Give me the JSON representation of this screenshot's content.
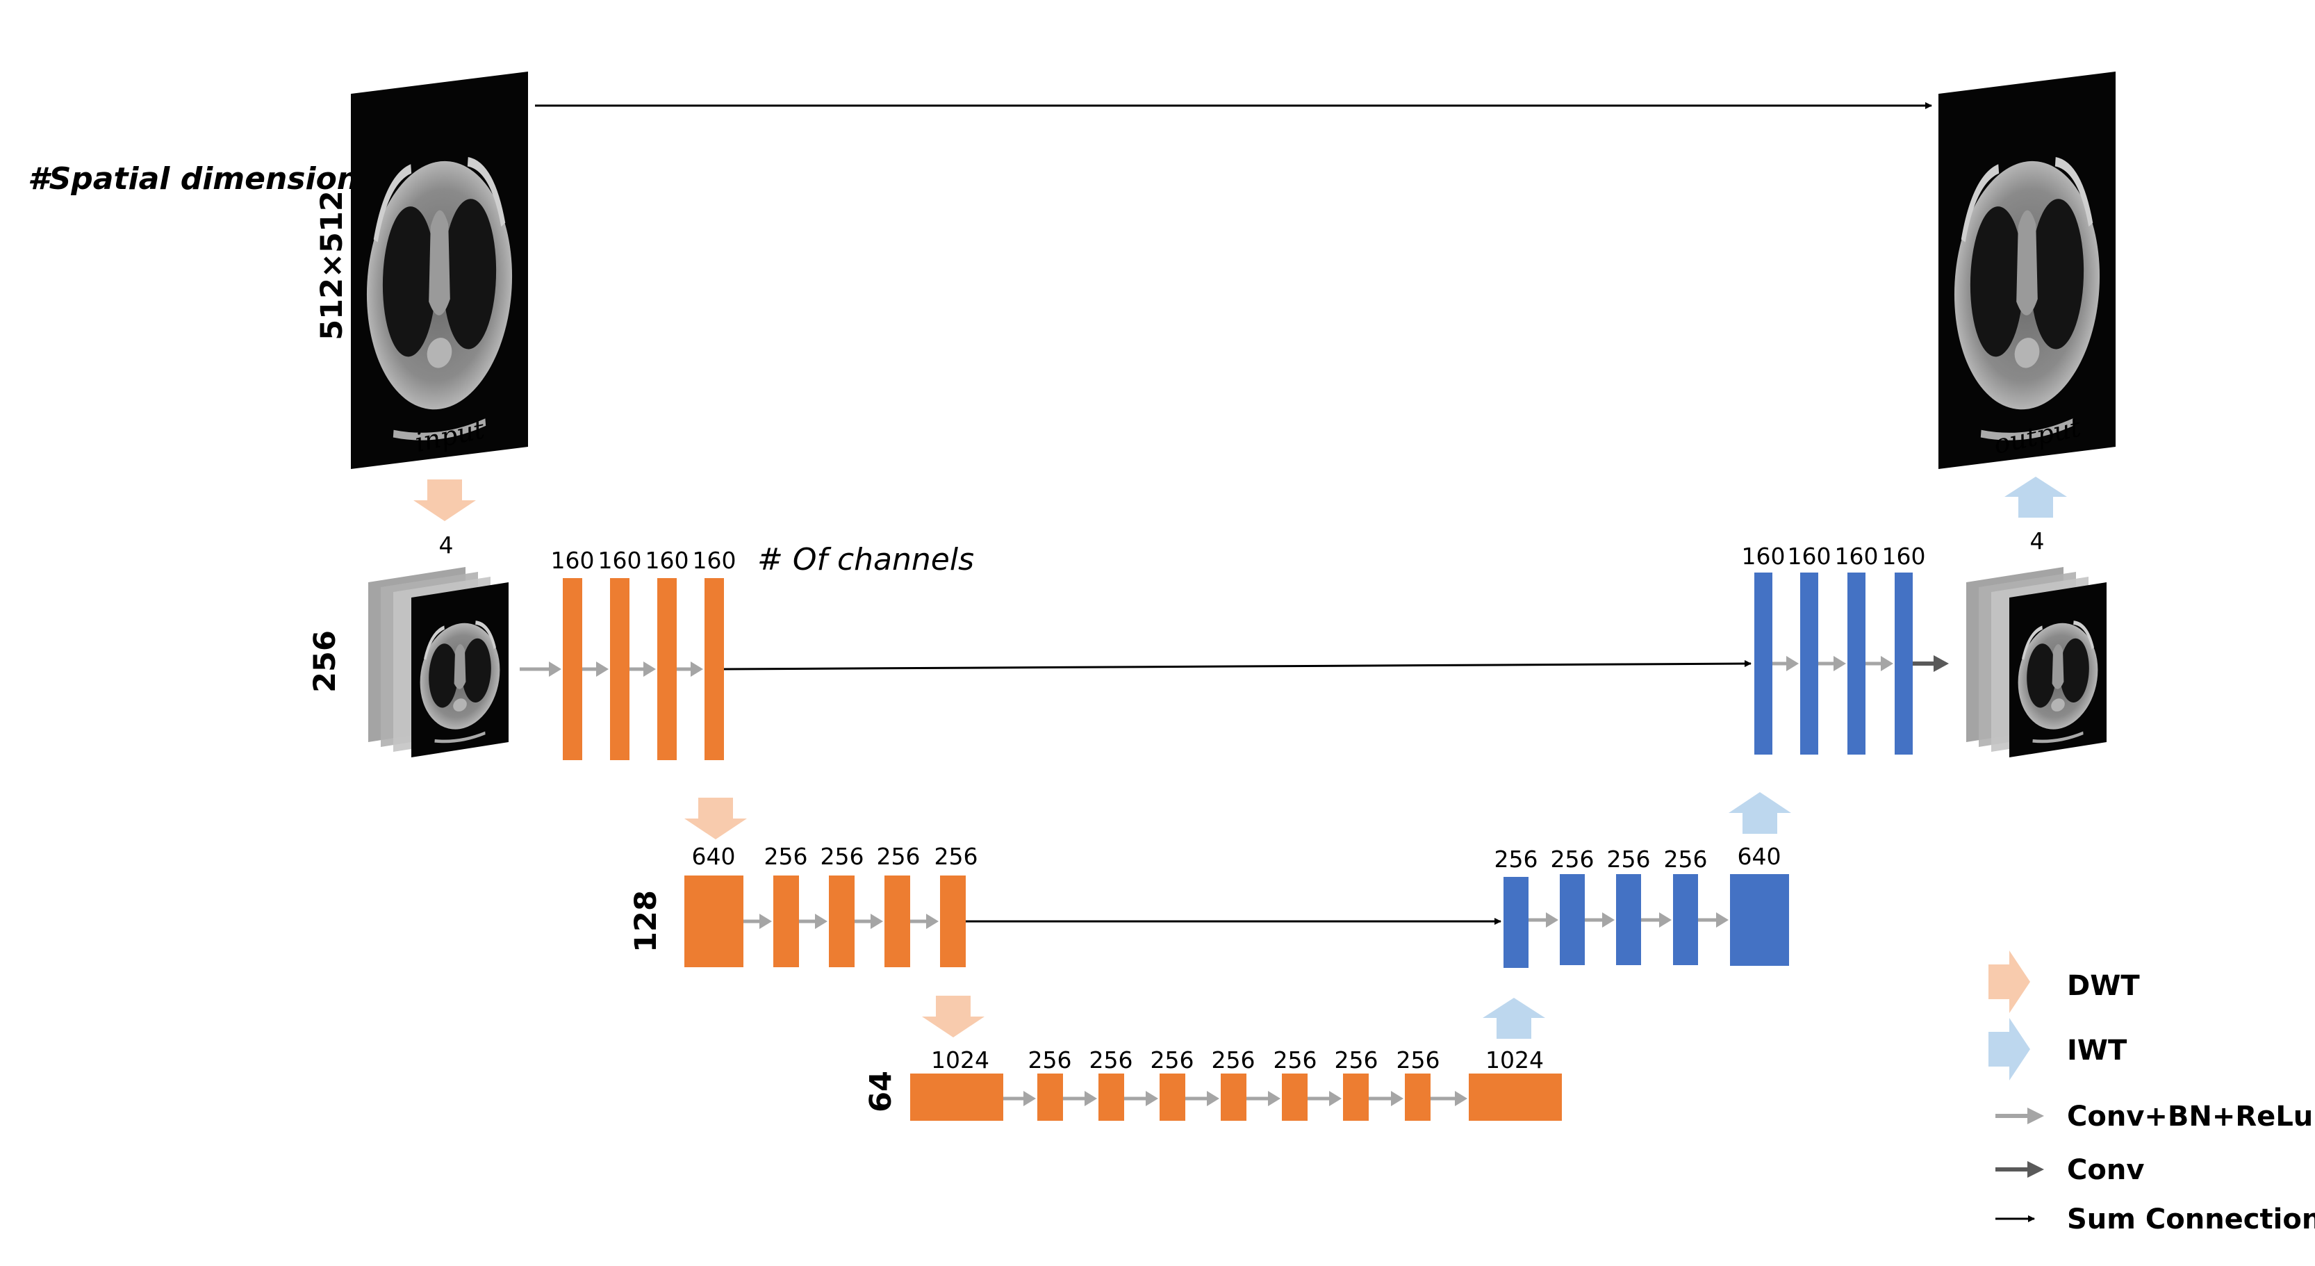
{
  "labels": {
    "spatial_title": "#Spatial dimension:",
    "channels_title": "# Of channels",
    "input": "input",
    "output": "output"
  },
  "levels": {
    "l512": "512×512",
    "l256": "256",
    "l128": "128",
    "l64": "64"
  },
  "level1": {
    "input_stack_channels": "4",
    "encoder_channels": [
      "160",
      "160",
      "160",
      "160"
    ],
    "decoder_channels": [
      "160",
      "160",
      "160",
      "160"
    ],
    "output_stack_channels": "4"
  },
  "level2": {
    "encoder_channels": [
      "640",
      "256",
      "256",
      "256",
      "256"
    ],
    "decoder_channels": [
      "256",
      "256",
      "256",
      "256",
      "640"
    ]
  },
  "level3": {
    "channels": [
      "1024",
      "256",
      "256",
      "256",
      "256",
      "256",
      "256",
      "256",
      "1024"
    ]
  },
  "legend": [
    {
      "label": "DWT",
      "icon": "dwt-arrow-icon"
    },
    {
      "label": "IWT",
      "icon": "iwt-arrow-icon"
    },
    {
      "label": "Conv+BN+ReLu",
      "icon": "conv-bn-relu-arrow-icon"
    },
    {
      "label": "Conv",
      "icon": "conv-arrow-icon"
    },
    {
      "label": "Sum Connection",
      "icon": "sum-connection-arrow-icon"
    }
  ],
  "colors": {
    "encoder": "#ED7D31",
    "decoder": "#4472C4",
    "dwt": "#F8CBAD",
    "iwt": "#BDD7EE",
    "conv_bn_relu": "#A5A5A5",
    "conv": "#595959",
    "sum": "#000000"
  }
}
